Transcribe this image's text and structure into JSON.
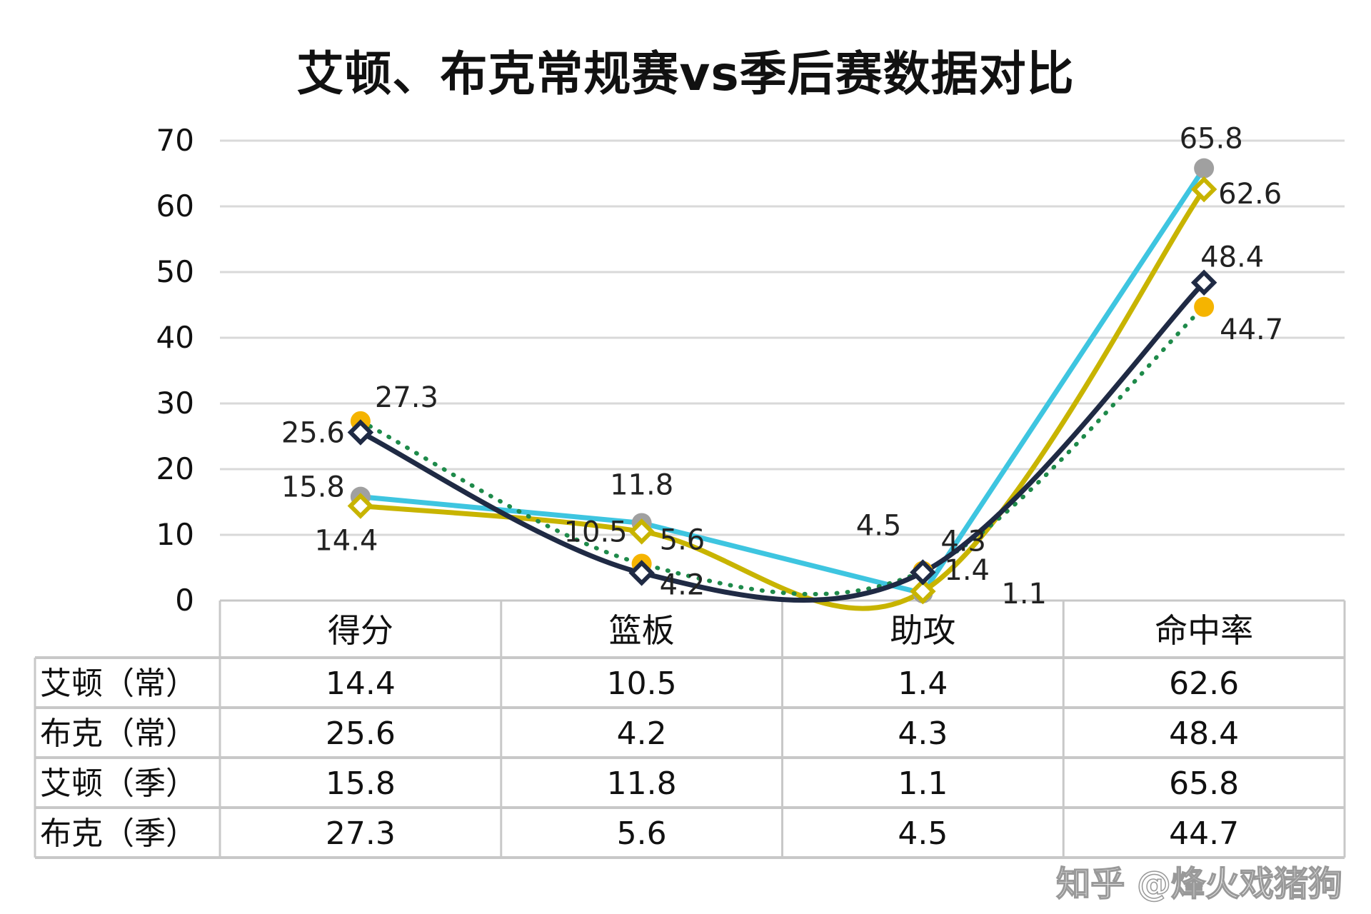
{
  "chart_data": {
    "type": "line",
    "title": "艾顿、布克常规赛vs季后赛数据对比",
    "categories": [
      "得分",
      "篮板",
      "助攻",
      "命中率"
    ],
    "ylim": [
      0,
      70
    ],
    "yticks": [
      0,
      10,
      20,
      30,
      40,
      50,
      60,
      70
    ],
    "grid": true,
    "legend": "data-table-below",
    "series": [
      {
        "name": "艾顿（常）",
        "values": [
          14.4,
          10.5,
          1.4,
          62.6
        ],
        "color": "#c8b400",
        "marker": "diamond",
        "smooth": true,
        "style": "solid"
      },
      {
        "name": "布克（常）",
        "values": [
          25.6,
          4.2,
          4.3,
          48.4
        ],
        "color": "#1f2a44",
        "marker": "diamond",
        "smooth": true,
        "style": "solid"
      },
      {
        "name": "艾顿（季）",
        "values": [
          15.8,
          11.8,
          1.1,
          65.8
        ],
        "color": "#3ec5e0",
        "marker_color": "#a0a0a0",
        "marker": "circle",
        "smooth": false,
        "style": "solid"
      },
      {
        "name": "布克（季）",
        "values": [
          27.3,
          5.6,
          4.5,
          44.7
        ],
        "color": "#1e8a4a",
        "marker_color": "#f5b400",
        "marker": "circle",
        "smooth": true,
        "style": "dotted"
      }
    ]
  },
  "watermark": "知乎 @烽火戏猪狗"
}
